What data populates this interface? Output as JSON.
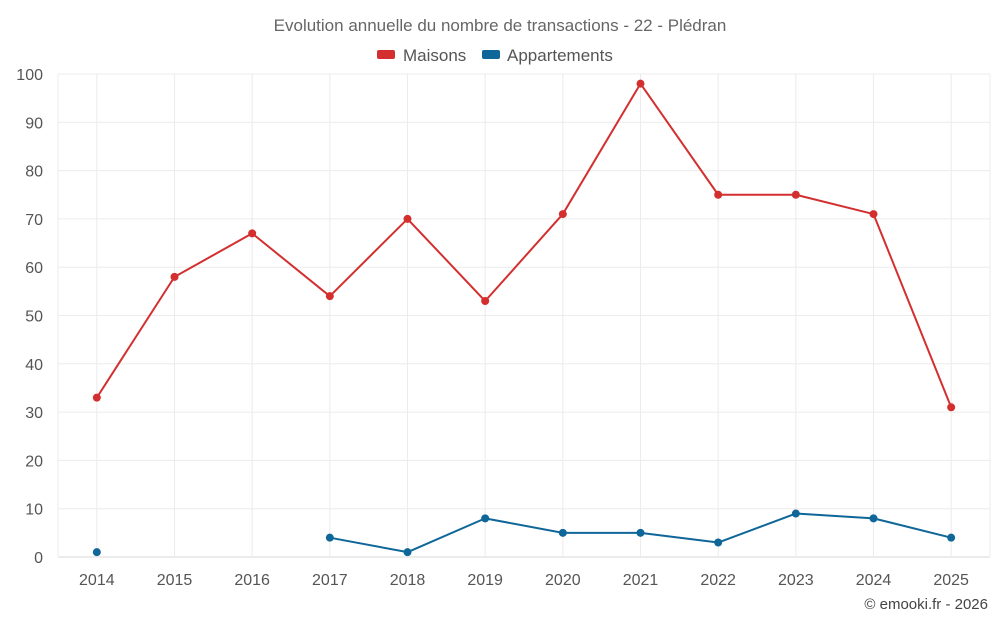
{
  "chart_data": {
    "type": "line",
    "title": "Evolution annuelle du nombre de transactions - 22 - Plédran",
    "categories": [
      "2014",
      "2015",
      "2016",
      "2017",
      "2018",
      "2019",
      "2020",
      "2021",
      "2022",
      "2023",
      "2024",
      "2025"
    ],
    "series": [
      {
        "name": "Maisons",
        "color": "#d32f2f",
        "values": [
          33,
          58,
          67,
          54,
          70,
          53,
          71,
          98,
          75,
          75,
          71,
          31
        ]
      },
      {
        "name": "Appartements",
        "color": "#0f6699",
        "values": [
          1,
          null,
          null,
          4,
          1,
          8,
          5,
          5,
          3,
          9,
          8,
          4
        ]
      }
    ],
    "ylim": [
      0,
      100
    ],
    "yticks": [
      0,
      10,
      20,
      30,
      40,
      50,
      60,
      70,
      80,
      90,
      100
    ],
    "xlabel": "",
    "ylabel": "",
    "grid": true,
    "legend": "top-center"
  },
  "credit": "© emooki.fr - 2026"
}
